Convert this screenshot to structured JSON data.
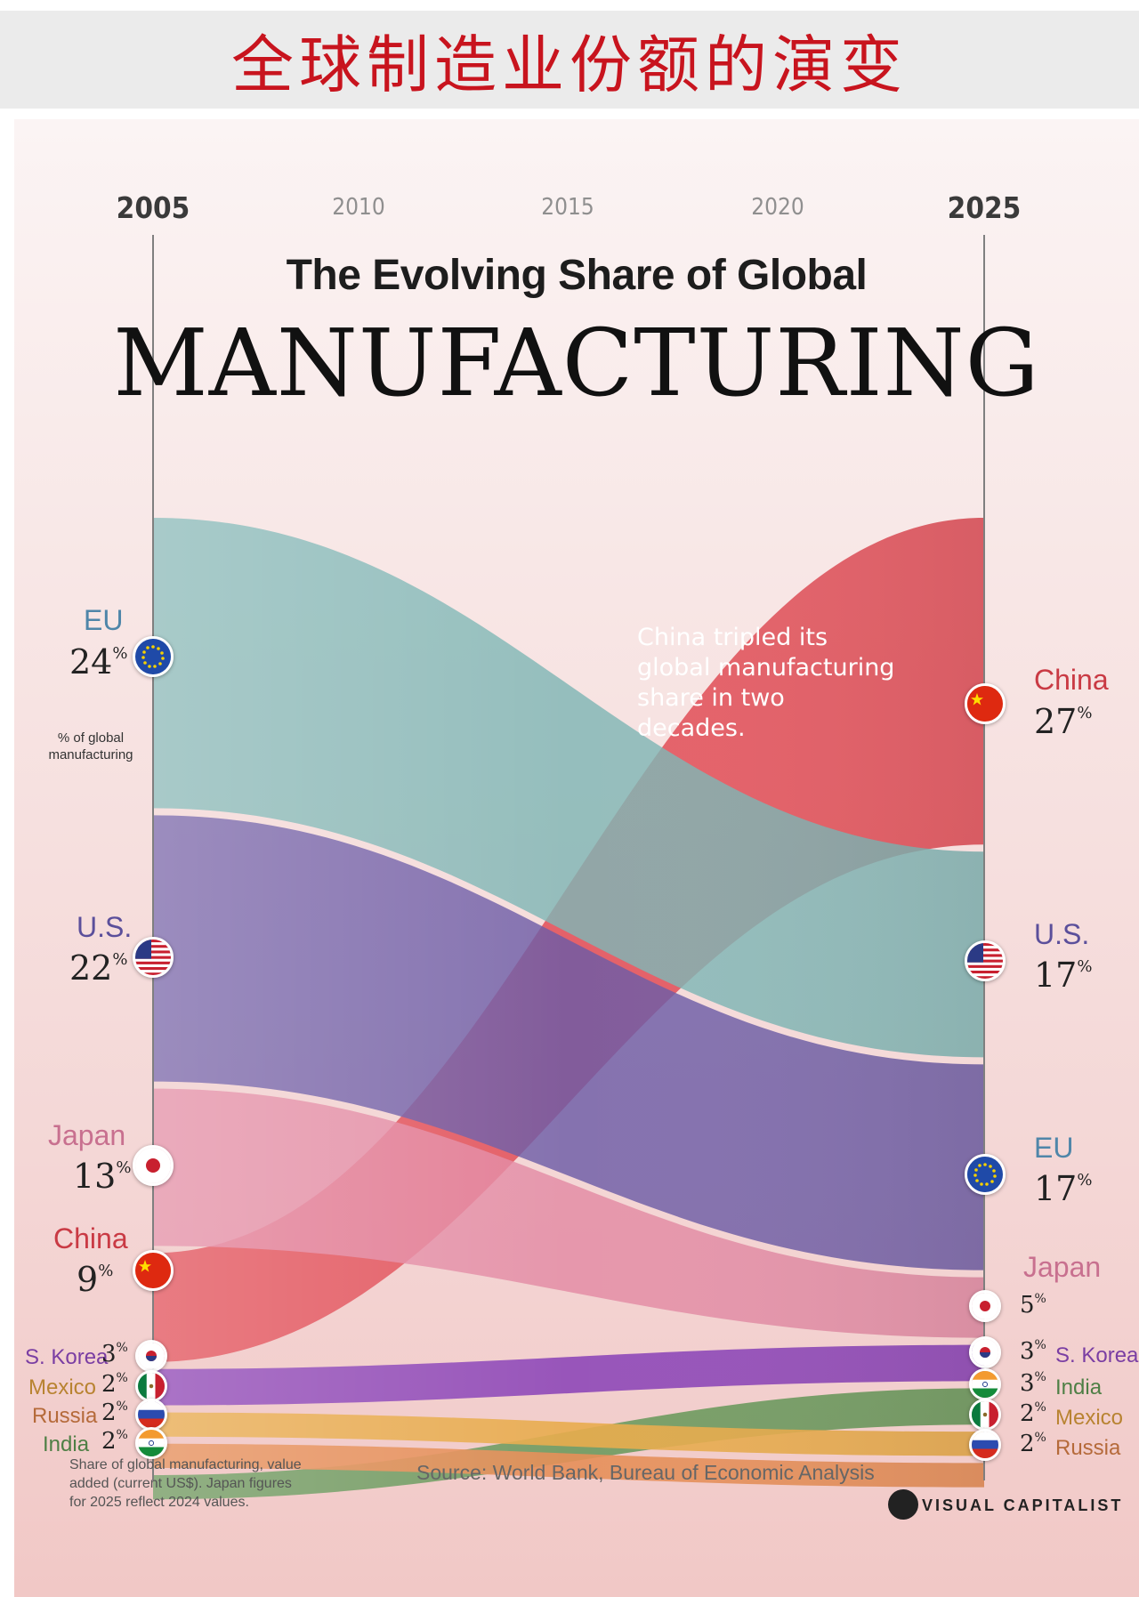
{
  "banner": {
    "title": "全球制造业份额的演变"
  },
  "poster": {
    "title_line1": "The Evolving Share of Global",
    "title_line2": "MANUFACTURING",
    "annotation": "China tripled its global manufacturing share in two decades.",
    "unit_note": "% of global manufacturing",
    "footnote": "Share of global manufacturing, value added (current US$). Japan figures for 2025 reflect 2024 values.",
    "source": "Source: World Bank, Bureau of Economic Analysis",
    "brand": "VISUAL CAPITALIST"
  },
  "colors": {
    "china": "#e1464f",
    "us": "#6d5ca6",
    "eu": "#7fb6b5",
    "japan": "#e38aa3",
    "skorea": "#8e47b8",
    "india": "#6d9a5e",
    "mexico": "#e8ac4e",
    "russia": "#e58f59"
  },
  "chart_data": {
    "type": "area",
    "title": "The Evolving Share of Global MANUFACTURING",
    "x": [
      2005,
      2010,
      2015,
      2020,
      2025
    ],
    "x_label_major": [
      "2005",
      "2025"
    ],
    "x_label_minor": [
      "2010",
      "2015",
      "2020"
    ],
    "series": [
      {
        "name": "EU",
        "start": 24,
        "end": 17,
        "start_label": "24",
        "end_label": "17",
        "color": "#7fb6b5"
      },
      {
        "name": "U.S.",
        "start": 22,
        "end": 17,
        "start_label": "22",
        "end_label": "17",
        "color": "#6d5ca6"
      },
      {
        "name": "Japan",
        "start": 13,
        "end": 5,
        "start_label": "13",
        "end_label": "5",
        "color": "#e38aa3"
      },
      {
        "name": "China",
        "start": 9,
        "end": 27,
        "start_label": "9",
        "end_label": "27",
        "color": "#e1464f"
      },
      {
        "name": "S. Korea",
        "start": 3,
        "end": 3,
        "start_label": "3",
        "end_label": "3",
        "color": "#8e47b8"
      },
      {
        "name": "Mexico",
        "start": 2,
        "end": 2,
        "start_label": "2",
        "end_label": "2",
        "color": "#e8ac4e"
      },
      {
        "name": "Russia",
        "start": 2,
        "end": 2,
        "start_label": "2",
        "end_label": "2",
        "color": "#e58f59"
      },
      {
        "name": "India",
        "start": 2,
        "end": 3,
        "start_label": "2",
        "end_label": "3",
        "color": "#6d9a5e"
      }
    ]
  }
}
